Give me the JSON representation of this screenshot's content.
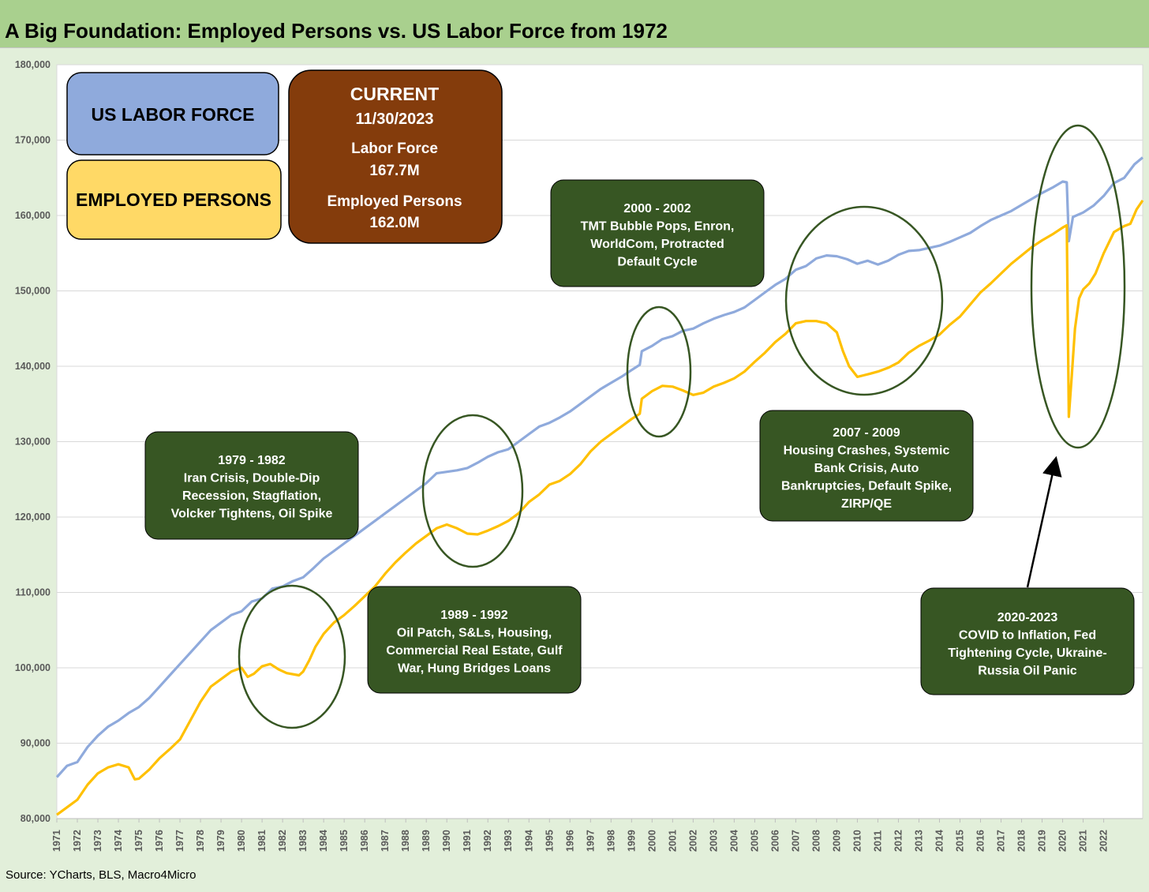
{
  "header": {
    "title": "A Big Foundation: Employed Persons vs. US Labor Force from 1972"
  },
  "footer": {
    "source": "Source: YCharts, BLS, Macro4Micro"
  },
  "colors": {
    "labor_force": "#8faadc",
    "employed": "#ffc000",
    "legend_labor_bg": "#8faadc",
    "legend_employed_bg": "#ffd966",
    "current_bg": "#843c0c",
    "annotation_bg": "#375623",
    "ellipse_stroke": "#375623",
    "plot_bg": "#ffffff",
    "title_bg": "#a9d08e",
    "page_bg": "#e2efda"
  },
  "legend": {
    "labor_force_label": "US LABOR FORCE",
    "employed_label": "EMPLOYED PERSONS"
  },
  "current_box": {
    "heading": "CURRENT",
    "date": "11/30/2023",
    "labor_label": "Labor Force",
    "labor_value": "167.7M",
    "employed_label": "Employed Persons",
    "employed_value": "162.0M"
  },
  "annotations": [
    {
      "id": "1979",
      "title": "1979 - 1982",
      "lines": [
        "Iran Crisis, Double-Dip",
        "Recession, Stagflation,",
        "Volcker Tightens, Oil Spike"
      ]
    },
    {
      "id": "1989",
      "title": "1989 - 1992",
      "lines": [
        "Oil Patch, S&Ls, Housing,",
        "Commercial Real Estate, Gulf",
        "War, Hung Bridges Loans"
      ]
    },
    {
      "id": "2000",
      "title": "2000 - 2002",
      "lines": [
        "TMT Bubble Pops, Enron,",
        "WorldCom, Protracted",
        "Default Cycle"
      ]
    },
    {
      "id": "2007",
      "title": "2007 - 2009",
      "lines": [
        "Housing Crashes, Systemic",
        "Bank Crisis, Auto",
        "Bankruptcies, Default Spike,",
        "ZIRP/QE"
      ]
    },
    {
      "id": "2020",
      "title": "2020-2023",
      "lines": [
        "COVID to Inflation, Fed",
        "Tightening Cycle, Ukraine-",
        "Russia Oil Panic"
      ]
    }
  ],
  "chart_data": {
    "type": "line",
    "title": "A Big Foundation: Employed Persons vs. US Labor Force from 1972",
    "xlabel": "",
    "ylabel": "",
    "ylim": [
      80000,
      180000
    ],
    "yticks": [
      80000,
      90000,
      100000,
      110000,
      120000,
      130000,
      140000,
      150000,
      160000,
      170000,
      180000
    ],
    "ytick_labels": [
      "80,000",
      "90,000",
      "100,000",
      "110,000",
      "120,000",
      "130,000",
      "140,000",
      "150,000",
      "160,000",
      "170,000",
      "180,000"
    ],
    "xtick_labels": [
      "1971",
      "1972",
      "1973",
      "1974",
      "1975",
      "1976",
      "1977",
      "1978",
      "1979",
      "1980",
      "1981",
      "1982",
      "1983",
      "1984",
      "1985",
      "1986",
      "1987",
      "1988",
      "1989",
      "1990",
      "1991",
      "1992",
      "1993",
      "1994",
      "1995",
      "1996",
      "1997",
      "1998",
      "1999",
      "2000",
      "2001",
      "2002",
      "2003",
      "2004",
      "2005",
      "2006",
      "2007",
      "2008",
      "2009",
      "2010",
      "2011",
      "2012",
      "2013",
      "2014",
      "2015",
      "2016",
      "2017",
      "2018",
      "2019",
      "2020",
      "2021",
      "2022"
    ],
    "grid": "horizontal",
    "series": [
      {
        "name": "US LABOR FORCE",
        "color": "#8faadc",
        "points": [
          [
            1971.0,
            85500
          ],
          [
            1971.5,
            87000
          ],
          [
            1972.0,
            87500
          ],
          [
            1972.5,
            89500
          ],
          [
            1973.0,
            91000
          ],
          [
            1973.5,
            92200
          ],
          [
            1974.0,
            93000
          ],
          [
            1974.5,
            94000
          ],
          [
            1975.0,
            94800
          ],
          [
            1975.5,
            96000
          ],
          [
            1976.0,
            97500
          ],
          [
            1976.5,
            99000
          ],
          [
            1977.0,
            100500
          ],
          [
            1977.5,
            102000
          ],
          [
            1978.0,
            103500
          ],
          [
            1978.5,
            105000
          ],
          [
            1979.0,
            106000
          ],
          [
            1979.5,
            107000
          ],
          [
            1980.0,
            107500
          ],
          [
            1980.5,
            108800
          ],
          [
            1981.0,
            109200
          ],
          [
            1981.5,
            110500
          ],
          [
            1982.0,
            110800
          ],
          [
            1982.5,
            111500
          ],
          [
            1983.0,
            112000
          ],
          [
            1983.5,
            113200
          ],
          [
            1984.0,
            114500
          ],
          [
            1984.5,
            115500
          ],
          [
            1985.0,
            116500
          ],
          [
            1985.5,
            117500
          ],
          [
            1986.0,
            118500
          ],
          [
            1986.5,
            119500
          ],
          [
            1987.0,
            120500
          ],
          [
            1987.5,
            121500
          ],
          [
            1988.0,
            122500
          ],
          [
            1988.5,
            123500
          ],
          [
            1989.0,
            124500
          ],
          [
            1989.5,
            125800
          ],
          [
            1990.0,
            126000
          ],
          [
            1990.5,
            126200
          ],
          [
            1991.0,
            126500
          ],
          [
            1991.5,
            127200
          ],
          [
            1992.0,
            128000
          ],
          [
            1992.5,
            128600
          ],
          [
            1993.0,
            129000
          ],
          [
            1993.5,
            130000
          ],
          [
            1994.0,
            131000
          ],
          [
            1994.5,
            132000
          ],
          [
            1995.0,
            132500
          ],
          [
            1995.5,
            133200
          ],
          [
            1996.0,
            134000
          ],
          [
            1996.5,
            135000
          ],
          [
            1997.0,
            136000
          ],
          [
            1997.5,
            137000
          ],
          [
            1998.0,
            137800
          ],
          [
            1998.5,
            138600
          ],
          [
            1999.0,
            139500
          ],
          [
            1999.4,
            140200
          ],
          [
            1999.5,
            142000
          ],
          [
            2000.0,
            142700
          ],
          [
            2000.5,
            143600
          ],
          [
            2001.0,
            144000
          ],
          [
            2001.5,
            144700
          ],
          [
            2002.0,
            145000
          ],
          [
            2002.5,
            145700
          ],
          [
            2003.0,
            146300
          ],
          [
            2003.5,
            146800
          ],
          [
            2004.0,
            147200
          ],
          [
            2004.5,
            147800
          ],
          [
            2005.0,
            148800
          ],
          [
            2005.5,
            149800
          ],
          [
            2006.0,
            150800
          ],
          [
            2006.5,
            151600
          ],
          [
            2007.0,
            152800
          ],
          [
            2007.5,
            153300
          ],
          [
            2008.0,
            154300
          ],
          [
            2008.5,
            154700
          ],
          [
            2009.0,
            154600
          ],
          [
            2009.5,
            154200
          ],
          [
            2010.0,
            153600
          ],
          [
            2010.5,
            154000
          ],
          [
            2011.0,
            153500
          ],
          [
            2011.5,
            154000
          ],
          [
            2012.0,
            154800
          ],
          [
            2012.5,
            155300
          ],
          [
            2013.0,
            155400
          ],
          [
            2013.5,
            155700
          ],
          [
            2014.0,
            156000
          ],
          [
            2014.5,
            156500
          ],
          [
            2015.0,
            157100
          ],
          [
            2015.5,
            157700
          ],
          [
            2016.0,
            158600
          ],
          [
            2016.5,
            159400
          ],
          [
            2017.0,
            160000
          ],
          [
            2017.5,
            160600
          ],
          [
            2018.0,
            161400
          ],
          [
            2018.5,
            162200
          ],
          [
            2019.0,
            163000
          ],
          [
            2019.5,
            163700
          ],
          [
            2020.0,
            164500
          ],
          [
            2020.2,
            164400
          ],
          [
            2020.3,
            156600
          ],
          [
            2020.5,
            159800
          ],
          [
            2021.0,
            160400
          ],
          [
            2021.5,
            161300
          ],
          [
            2022.0,
            162600
          ],
          [
            2022.5,
            164300
          ],
          [
            2023.0,
            165000
          ],
          [
            2023.5,
            166800
          ],
          [
            2023.9,
            167700
          ]
        ]
      },
      {
        "name": "EMPLOYED PERSONS",
        "color": "#ffc000",
        "points": [
          [
            1971.0,
            80500
          ],
          [
            1971.5,
            81500
          ],
          [
            1972.0,
            82500
          ],
          [
            1972.5,
            84500
          ],
          [
            1973.0,
            86000
          ],
          [
            1973.5,
            86800
          ],
          [
            1974.0,
            87200
          ],
          [
            1974.5,
            86800
          ],
          [
            1974.8,
            85200
          ],
          [
            1975.0,
            85300
          ],
          [
            1975.5,
            86500
          ],
          [
            1976.0,
            88000
          ],
          [
            1976.5,
            89200
          ],
          [
            1977.0,
            90500
          ],
          [
            1977.5,
            93000
          ],
          [
            1978.0,
            95500
          ],
          [
            1978.5,
            97500
          ],
          [
            1979.0,
            98500
          ],
          [
            1979.5,
            99500
          ],
          [
            1980.0,
            100000
          ],
          [
            1980.3,
            98800
          ],
          [
            1980.6,
            99200
          ],
          [
            1981.0,
            100200
          ],
          [
            1981.4,
            100500
          ],
          [
            1981.8,
            99800
          ],
          [
            1982.2,
            99300
          ],
          [
            1982.8,
            99000
          ],
          [
            1983.0,
            99500
          ],
          [
            1983.3,
            101000
          ],
          [
            1983.6,
            102800
          ],
          [
            1984.0,
            104500
          ],
          [
            1984.5,
            106000
          ],
          [
            1985.0,
            107000
          ],
          [
            1985.5,
            108200
          ],
          [
            1986.0,
            109500
          ],
          [
            1986.5,
            110800
          ],
          [
            1987.0,
            112500
          ],
          [
            1987.5,
            114000
          ],
          [
            1988.0,
            115300
          ],
          [
            1988.5,
            116500
          ],
          [
            1989.0,
            117500
          ],
          [
            1989.5,
            118500
          ],
          [
            1990.0,
            119000
          ],
          [
            1990.5,
            118500
          ],
          [
            1991.0,
            117800
          ],
          [
            1991.5,
            117700
          ],
          [
            1992.0,
            118200
          ],
          [
            1992.5,
            118800
          ],
          [
            1993.0,
            119500
          ],
          [
            1993.5,
            120500
          ],
          [
            1994.0,
            122000
          ],
          [
            1994.5,
            123000
          ],
          [
            1995.0,
            124300
          ],
          [
            1995.5,
            124800
          ],
          [
            1996.0,
            125700
          ],
          [
            1996.5,
            127000
          ],
          [
            1997.0,
            128700
          ],
          [
            1997.5,
            130000
          ],
          [
            1998.0,
            131000
          ],
          [
            1998.5,
            132000
          ],
          [
            1999.0,
            133000
          ],
          [
            1999.4,
            133700
          ],
          [
            1999.5,
            135700
          ],
          [
            2000.0,
            136700
          ],
          [
            2000.5,
            137400
          ],
          [
            2001.0,
            137300
          ],
          [
            2001.5,
            136800
          ],
          [
            2002.0,
            136200
          ],
          [
            2002.5,
            136500
          ],
          [
            2003.0,
            137300
          ],
          [
            2003.5,
            137800
          ],
          [
            2004.0,
            138400
          ],
          [
            2004.5,
            139300
          ],
          [
            2005.0,
            140600
          ],
          [
            2005.5,
            141800
          ],
          [
            2006.0,
            143200
          ],
          [
            2006.5,
            144300
          ],
          [
            2007.0,
            145700
          ],
          [
            2007.5,
            146000
          ],
          [
            2008.0,
            146000
          ],
          [
            2008.5,
            145700
          ],
          [
            2009.0,
            144500
          ],
          [
            2009.3,
            142000
          ],
          [
            2009.6,
            140000
          ],
          [
            2010.0,
            138600
          ],
          [
            2010.3,
            138800
          ],
          [
            2010.6,
            139000
          ],
          [
            2011.0,
            139300
          ],
          [
            2011.5,
            139800
          ],
          [
            2012.0,
            140500
          ],
          [
            2012.5,
            141800
          ],
          [
            2013.0,
            142700
          ],
          [
            2013.5,
            143400
          ],
          [
            2014.0,
            144200
          ],
          [
            2014.5,
            145500
          ],
          [
            2015.0,
            146600
          ],
          [
            2015.5,
            148200
          ],
          [
            2016.0,
            149800
          ],
          [
            2016.5,
            151000
          ],
          [
            2017.0,
            152300
          ],
          [
            2017.5,
            153600
          ],
          [
            2018.0,
            154700
          ],
          [
            2018.5,
            155800
          ],
          [
            2019.0,
            156700
          ],
          [
            2019.5,
            157500
          ],
          [
            2020.0,
            158400
          ],
          [
            2020.2,
            158700
          ],
          [
            2020.3,
            133300
          ],
          [
            2020.45,
            139000
          ],
          [
            2020.6,
            145000
          ],
          [
            2020.8,
            149000
          ],
          [
            2021.0,
            150200
          ],
          [
            2021.3,
            151000
          ],
          [
            2021.6,
            152300
          ],
          [
            2022.0,
            155000
          ],
          [
            2022.5,
            157800
          ],
          [
            2023.0,
            158600
          ],
          [
            2023.3,
            158900
          ],
          [
            2023.6,
            160800
          ],
          [
            2023.9,
            162000
          ]
        ]
      }
    ]
  }
}
